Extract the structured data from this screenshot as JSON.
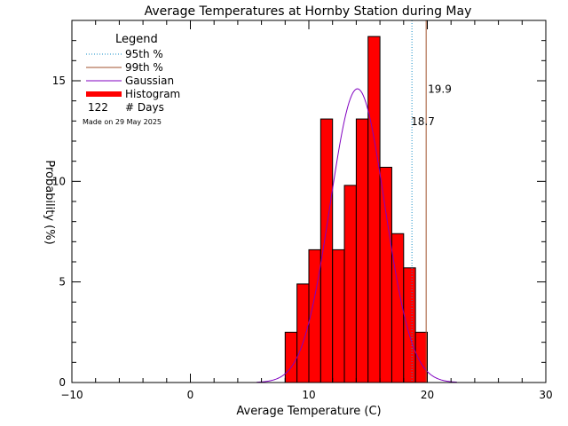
{
  "chart_data": {
    "type": "bar",
    "title": "Average Temperatures at Hornby Station during May",
    "xlabel": "Average Temperature (C)",
    "ylabel": "Probability   (%)",
    "xlim": [
      -10,
      30
    ],
    "ylim": [
      0,
      18
    ],
    "x_ticks": [
      -10,
      0,
      10,
      20,
      30
    ],
    "y_ticks": [
      0,
      5,
      10,
      15
    ],
    "histogram": {
      "bin_width": 1,
      "bin_starts": [
        8,
        9,
        10,
        11,
        12,
        13,
        14,
        15,
        16,
        17,
        18,
        19
      ],
      "values": [
        2.5,
        4.9,
        6.6,
        13.1,
        6.6,
        9.8,
        13.1,
        17.2,
        10.7,
        7.4,
        5.7,
        2.5
      ]
    },
    "gaussian": {
      "mean": 14.1,
      "peak": 14.6,
      "sigma": 2.3
    },
    "percentile_95": 18.7,
    "percentile_99": 19.9,
    "legend": {
      "title": "Legend",
      "entries": [
        "95th %",
        "99th %",
        "Gaussian",
        "Histogram"
      ],
      "days_count": "122",
      "days_label": "# Days",
      "made_on": "Made on 29 May 2025",
      "position": "top-left"
    },
    "labels": {
      "p99": "19.9",
      "p95": "18.7"
    },
    "colors": {
      "histogram": "#ff0000",
      "gaussian": "#8000c0",
      "p95": "#1a90c8",
      "p99": "#a0522d",
      "made_on": "#c8c8c8"
    }
  }
}
